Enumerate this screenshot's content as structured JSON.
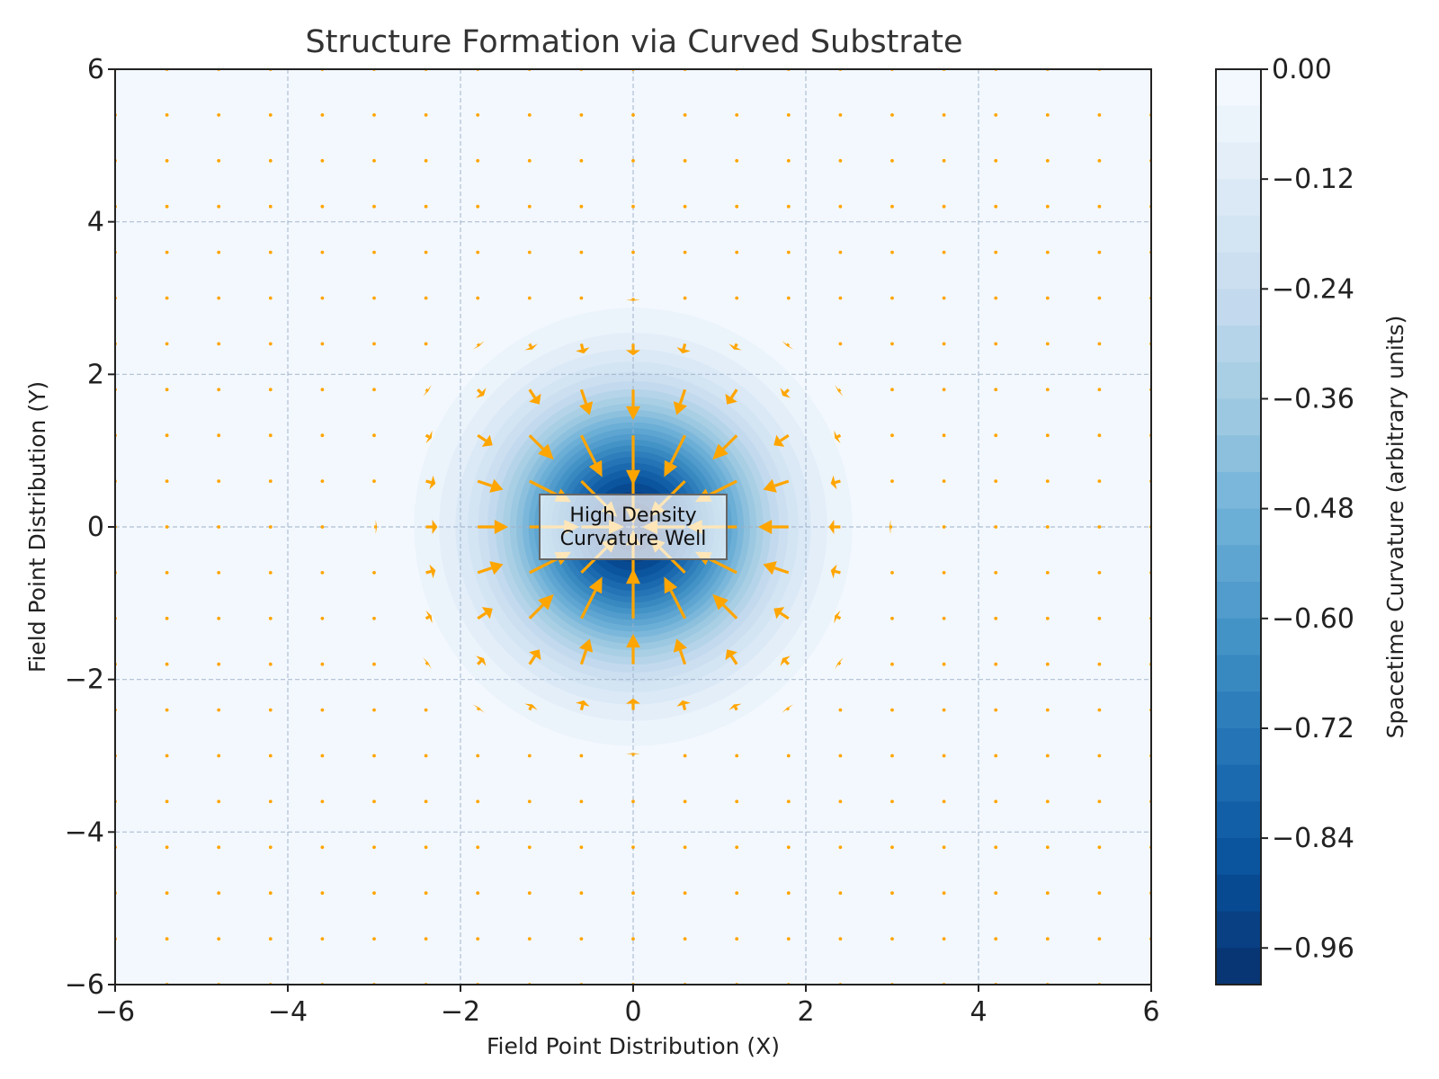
{
  "chart_data": {
    "type": "contour_quiver",
    "title": "Structure Formation via Curved Substrate",
    "xlabel": "Field Point Distribution (X)",
    "ylabel": "Field Point Distribution (Y)",
    "xlim": [
      -6,
      6
    ],
    "ylim": [
      -6,
      6
    ],
    "x_ticks": [
      -6,
      -4,
      -2,
      0,
      2,
      4,
      6
    ],
    "y_ticks": [
      -6,
      -4,
      -2,
      0,
      2,
      4,
      6
    ],
    "x_tick_labels": [
      "−6",
      "−4",
      "−2",
      "0",
      "2",
      "4",
      "6"
    ],
    "y_tick_labels": [
      "−6",
      "−4",
      "−2",
      "0",
      "2",
      "4",
      "6"
    ],
    "grid": true,
    "field": {
      "description": "curvature well centered at origin, approx -exp(-(x^2+y^2)/2)",
      "center": [
        0,
        0
      ],
      "min_value": -1.0,
      "max_value": 0.0
    },
    "quiver": {
      "direction": "toward center",
      "color": "#ffa500",
      "grid_start": -6,
      "grid_step": 0.6,
      "grid_count": 21
    },
    "colorbar": {
      "label": "Spacetime Curvature (arbitrary units)",
      "min": -1.0,
      "max": 0.0,
      "levels": 25,
      "ticks": [
        0.0,
        -0.12,
        -0.24,
        -0.36,
        -0.48,
        -0.6,
        -0.72,
        -0.84,
        -0.96
      ],
      "tick_labels": [
        "0.00",
        "−0.12",
        "−0.24",
        "−0.36",
        "−0.48",
        "−0.60",
        "−0.72",
        "−0.84",
        "−0.96"
      ],
      "colors": [
        "#f7fbff",
        "#deebf7",
        "#c6dbef",
        "#9ecae1",
        "#6baed6",
        "#4292c6",
        "#2171b5",
        "#08519c",
        "#08306b"
      ]
    },
    "annotation": {
      "lines": [
        "High Density",
        "Curvature Well"
      ],
      "at": [
        0,
        0
      ]
    }
  }
}
